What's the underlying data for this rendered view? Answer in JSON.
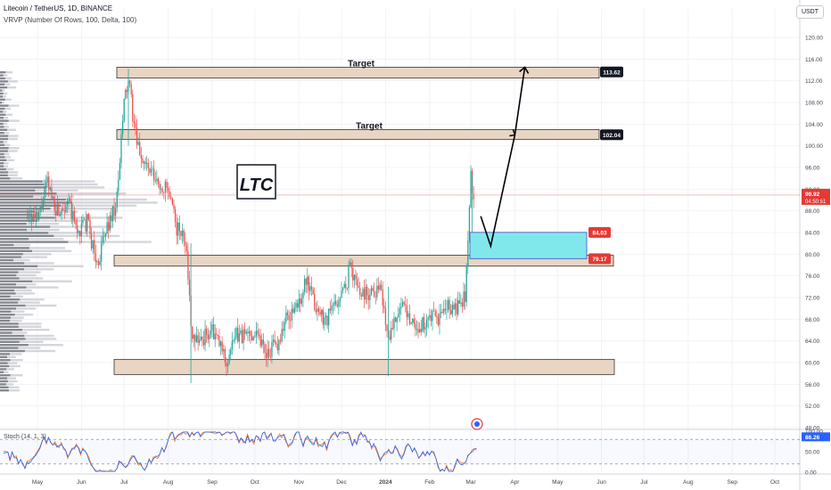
{
  "header": {
    "title": "Litecoin / TetherUS, 1D, BINANCE",
    "indicator": "VRVP (Number Of Rows, 100, Delta, 100)",
    "currency": "USDT"
  },
  "colors": {
    "up": "#26a69a",
    "down": "#ef5350",
    "zone_fill": "#e8d5c4",
    "zone_border": "#3d3128",
    "cyan": "#80e8ea",
    "price_line": "#ef9a9a",
    "stoch_line": "#2962ff",
    "stoch_signal": "#ff6d00"
  },
  "chart_data": {
    "type": "candlestick",
    "title": "Litecoin / TetherUS, 1D, BINANCE",
    "y_axis": {
      "min": 48,
      "max": 120,
      "ticks": [
        120,
        116,
        112,
        108,
        104,
        100,
        96,
        92,
        88,
        84,
        80,
        76,
        72,
        68,
        64,
        60,
        56,
        52,
        48
      ],
      "tick_labels": [
        "120.00",
        "116.00",
        "112.00",
        "108.00",
        "104.00",
        "100.00",
        "96.00",
        "92.00",
        "88.00",
        "84.00",
        "80.00",
        "76.00",
        "72.00",
        "68.00",
        "64.00",
        "60.00",
        "56.00",
        "52.00",
        "48.00"
      ]
    },
    "x_axis": {
      "labels": [
        {
          "label": "May",
          "date": "2023-05-01"
        },
        {
          "label": "Jun",
          "date": "2023-06-01"
        },
        {
          "label": "Jul",
          "date": "2023-07-01"
        },
        {
          "label": "Aug",
          "date": "2023-08-01"
        },
        {
          "label": "Sep",
          "date": "2023-09-01"
        },
        {
          "label": "Oct",
          "date": "2023-10-01"
        },
        {
          "label": "Nov",
          "date": "2023-11-01"
        },
        {
          "label": "Dec",
          "date": "2023-12-01"
        },
        {
          "label": "2024",
          "date": "2024-01-01"
        },
        {
          "label": "Feb",
          "date": "2024-02-01"
        },
        {
          "label": "Mar",
          "date": "2024-03-01"
        },
        {
          "label": "Apr",
          "date": "2024-04-01"
        },
        {
          "label": "May",
          "date": "2024-05-01"
        },
        {
          "label": "Jun",
          "date": "2024-06-01"
        },
        {
          "label": "Jul",
          "date": "2024-07-01"
        },
        {
          "label": "Aug",
          "date": "2024-08-01"
        },
        {
          "label": "Sep",
          "date": "2024-09-01"
        },
        {
          "label": "Oct",
          "date": "2024-10-01"
        }
      ]
    },
    "price_path": [
      [
        "2023-04-24",
        88
      ],
      [
        "2023-05-01",
        86
      ],
      [
        "2023-05-08",
        93
      ],
      [
        "2023-05-15",
        88
      ],
      [
        "2023-05-22",
        90
      ],
      [
        "2023-05-29",
        84
      ],
      [
        "2023-06-05",
        86
      ],
      [
        "2023-06-12",
        78
      ],
      [
        "2023-06-19",
        85
      ],
      [
        "2023-06-26",
        90
      ],
      [
        "2023-07-01",
        108
      ],
      [
        "2023-07-04",
        112
      ],
      [
        "2023-07-10",
        100
      ],
      [
        "2023-07-17",
        96
      ],
      [
        "2023-07-24",
        93
      ],
      [
        "2023-07-31",
        92
      ],
      [
        "2023-08-07",
        85
      ],
      [
        "2023-08-14",
        82
      ],
      [
        "2023-08-17",
        66
      ],
      [
        "2023-08-24",
        64
      ],
      [
        "2023-08-31",
        66
      ],
      [
        "2023-09-07",
        63
      ],
      [
        "2023-09-11",
        60
      ],
      [
        "2023-09-18",
        65
      ],
      [
        "2023-09-25",
        65
      ],
      [
        "2023-10-02",
        66
      ],
      [
        "2023-10-09",
        62
      ],
      [
        "2023-10-16",
        63
      ],
      [
        "2023-10-23",
        68
      ],
      [
        "2023-10-30",
        70
      ],
      [
        "2023-11-06",
        75
      ],
      [
        "2023-11-13",
        70
      ],
      [
        "2023-11-20",
        68
      ],
      [
        "2023-11-27",
        71
      ],
      [
        "2023-12-04",
        74
      ],
      [
        "2023-12-07",
        78
      ],
      [
        "2023-12-14",
        73
      ],
      [
        "2023-12-21",
        73
      ],
      [
        "2023-12-28",
        74
      ],
      [
        "2024-01-03",
        65
      ],
      [
        "2024-01-10",
        70
      ],
      [
        "2024-01-17",
        69
      ],
      [
        "2024-01-24",
        66
      ],
      [
        "2024-01-31",
        68
      ],
      [
        "2024-02-07",
        68
      ],
      [
        "2024-02-14",
        70
      ],
      [
        "2024-02-21",
        70
      ],
      [
        "2024-02-26",
        72
      ],
      [
        "2024-02-28",
        84
      ],
      [
        "2024-03-01",
        94
      ],
      [
        "2024-03-03",
        90.92
      ]
    ],
    "last_price": {
      "value": 90.92,
      "label": "90.92",
      "countdown": "04:50:51"
    },
    "zones": [
      {
        "name": "target-zone-upper",
        "from": 112.5,
        "to": 114.5,
        "label": "Target",
        "price_label": "113.62",
        "price": 113.62
      },
      {
        "name": "target-zone-lower",
        "from": 101.2,
        "to": 103.0,
        "label": "Target",
        "price_label": "102.04",
        "price": 102.04
      },
      {
        "name": "support-zone-mid",
        "from": 77.8,
        "to": 79.8
      },
      {
        "name": "support-zone-low",
        "from": 57.8,
        "to": 60.6
      }
    ],
    "entry_box": {
      "top": 84.03,
      "bottom": 79.17,
      "top_label": "84.03",
      "bottom_label": "79.17"
    },
    "projection_path": [
      [
        "2024-03-08",
        87
      ],
      [
        "2024-03-15",
        81.5
      ],
      [
        "2024-04-01",
        102
      ],
      [
        "2024-04-08",
        114.5
      ]
    ],
    "annotation": "LTC",
    "stoch": {
      "label": "Stoch (14, 1, 3)",
      "values": [
        "86.26"
      ],
      "tick_labels": [
        "100.00",
        "50.00",
        "0.00"
      ],
      "levels": [
        80,
        20
      ]
    }
  }
}
